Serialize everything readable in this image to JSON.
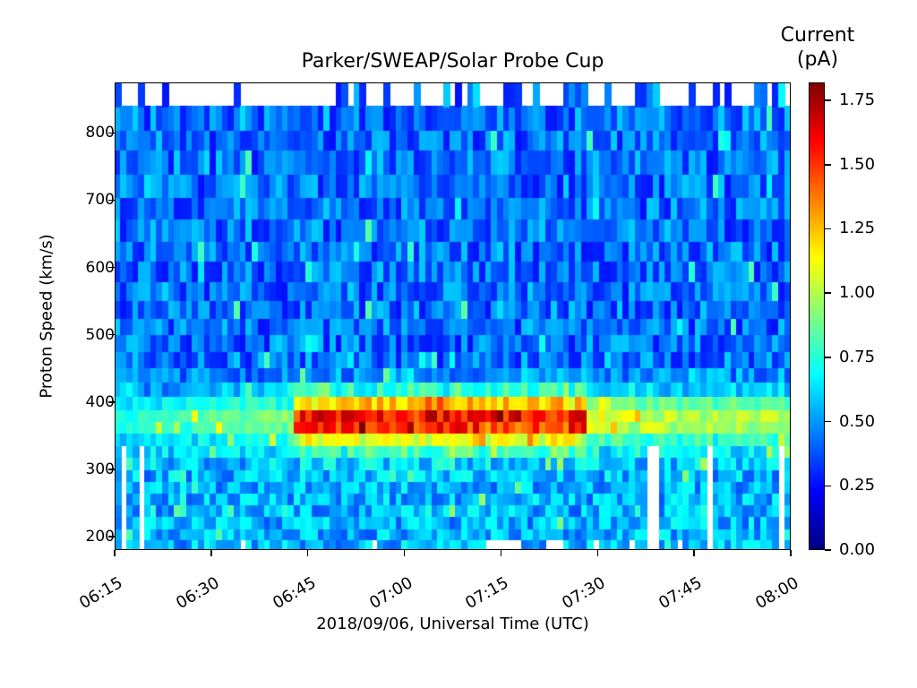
{
  "chart_data": {
    "type": "heatmap",
    "title": "Parker/SWEAP/Solar Probe Cup",
    "xlabel": "2018/09/06, Universal Time (UTC)",
    "ylabel": "Proton Speed (km/s)",
    "x_ticks": [
      "06:15",
      "06:30",
      "06:45",
      "07:00",
      "07:15",
      "07:30",
      "07:45",
      "08:00"
    ],
    "x_range": [
      "06:15",
      "08:00"
    ],
    "y_ticks": [
      200,
      300,
      400,
      500,
      600,
      700,
      800
    ],
    "y_range": [
      180,
      875
    ],
    "colorbar": {
      "title": "Current\n(pA)",
      "label_line1": "Current",
      "label_line2": "(pA)",
      "ticks": [
        "0.00",
        "0.25",
        "0.50",
        "0.75",
        "1.00",
        "1.25",
        "1.50",
        "1.75"
      ],
      "range": [
        0.0,
        1.82
      ],
      "colormap": "jet"
    },
    "grid": false,
    "n_time_bins": 113,
    "speed_bin_edges_kms": [
      180,
      195,
      212,
      230,
      248,
      265,
      282,
      300,
      318,
      336,
      354,
      372,
      390,
      410,
      430,
      452,
      475,
      500,
      525,
      552,
      580,
      610,
      640,
      672,
      705,
      740,
      775,
      805,
      840,
      875
    ],
    "description": "Background current ~0.25-0.6 pA (blue/cyan) across most speeds; an enhanced proton beam band at ~340-415 km/s peaking ~1.6-1.8 pA (dark red) between ~06:43 and ~07:28 UTC, fading to ~0.9-1.2 pA (yellow-green) before 06:40 and after 07:30. Top row (840-875 km/s) and a few low-speed bins have missing (white) data.",
    "beam": {
      "center_kms": 375,
      "width_kms": 28,
      "peak_pA": 1.7,
      "peak_start": "06:43",
      "peak_end": "07:28",
      "edge_level_pA": 1.0
    },
    "background_pA": [
      0.25,
      0.6
    ],
    "missing_data": {
      "top_row_filled_columns": [
        0,
        4,
        8,
        20,
        37,
        38,
        40,
        41,
        45,
        50,
        55,
        57,
        59,
        60,
        65,
        66,
        67,
        70,
        75,
        76,
        77,
        78,
        82,
        87,
        88,
        89,
        90,
        96,
        100,
        102,
        107,
        108,
        110,
        111
      ],
      "gap_columns_below_340": [
        1,
        4,
        89,
        90,
        99,
        111
      ],
      "bottom_row_gaps": [
        21,
        43,
        62,
        63,
        64,
        65,
        66,
        67,
        72,
        73,
        74,
        80,
        86,
        94
      ]
    }
  }
}
